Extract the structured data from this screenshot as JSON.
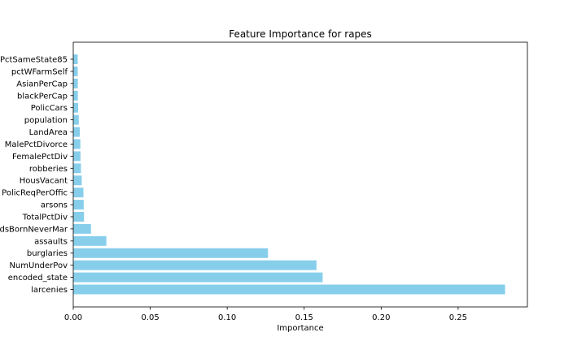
{
  "chart_data": {
    "type": "bar",
    "orientation": "horizontal",
    "title": "Feature Importance for rapes",
    "xlabel": "Importance",
    "ylabel": "",
    "xlim": [
      0,
      0.295
    ],
    "xticks": [
      "0.00",
      "0.05",
      "0.10",
      "0.15",
      "0.20",
      "0.25"
    ],
    "xtick_values": [
      0,
      0.05,
      0.1,
      0.15,
      0.2,
      0.25
    ],
    "grid": false,
    "legend": "none",
    "bar_color": "#87ceeb",
    "categories": [
      "larcenies",
      "encoded_state",
      "NumUnderPov",
      "burglaries",
      "assaults",
      "PctKidsBornNeverMar",
      "TotalPctDiv",
      "arsons",
      "PolicReqPerOffic",
      "HousVacant",
      "robberies",
      "FemalePctDiv",
      "MalePctDivorce",
      "LandArea",
      "population",
      "PolicCars",
      "blackPerCap",
      "AsianPerCap",
      "pctWFarmSelf",
      "PctSameState85"
    ],
    "values": [
      0.2805,
      0.162,
      0.158,
      0.1265,
      0.0215,
      0.0115,
      0.007,
      0.0068,
      0.0066,
      0.0055,
      0.005,
      0.0047,
      0.0046,
      0.0043,
      0.0036,
      0.0032,
      0.003,
      0.003,
      0.0029,
      0.0029
    ]
  }
}
